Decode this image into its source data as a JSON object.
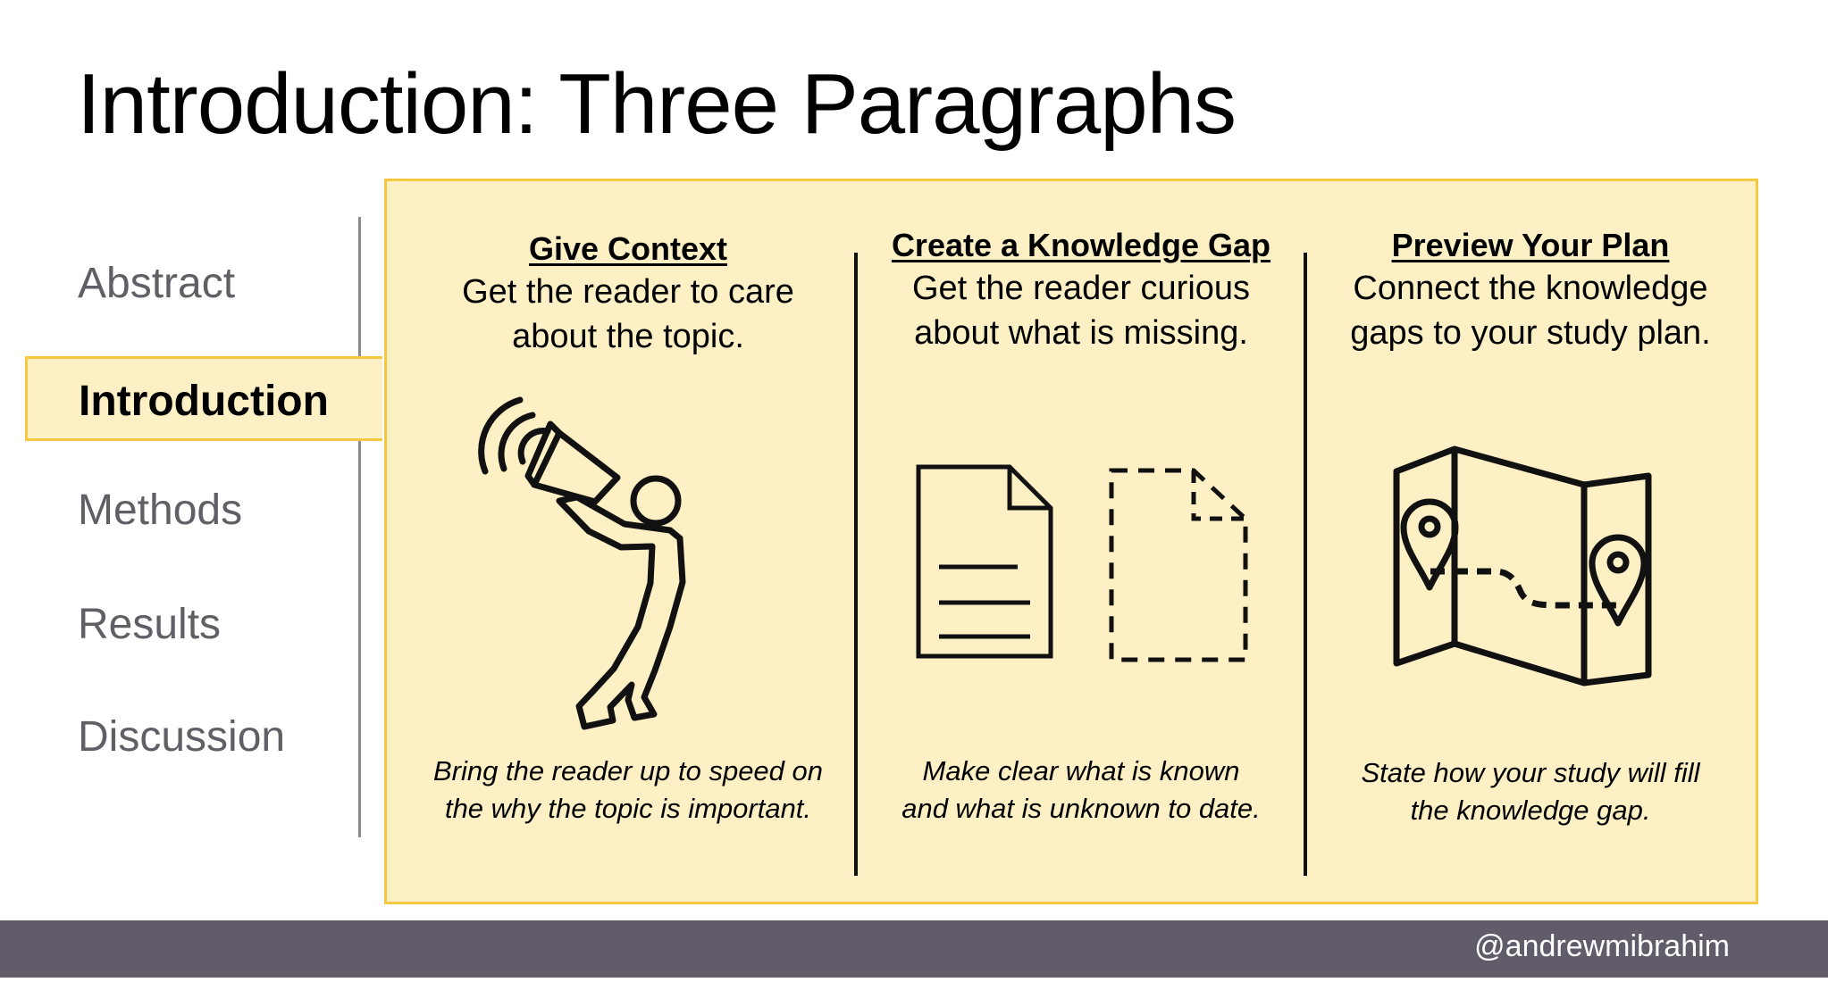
{
  "slide": {
    "title": "Introduction: Three Paragraphs"
  },
  "sidebar": {
    "items": [
      {
        "label": "Abstract",
        "active": false
      },
      {
        "label": "Introduction",
        "active": true
      },
      {
        "label": "Methods",
        "active": false
      },
      {
        "label": "Results",
        "active": false
      },
      {
        "label": "Discussion",
        "active": false
      }
    ]
  },
  "columns": [
    {
      "heading": "Give Context",
      "subtitle": [
        "Get the reader to care",
        "about the topic."
      ],
      "note": [
        "Bring the reader up to speed on",
        "the why the topic is important."
      ],
      "icon": "megaphone-person-icon"
    },
    {
      "heading": "Create a Knowledge Gap",
      "subtitle": [
        "Get the reader curious",
        "about what is missing."
      ],
      "note": [
        "Make clear what is known",
        "and what is unknown to date."
      ],
      "icon": "document-and-missing-document-icon"
    },
    {
      "heading": "Preview Your Plan",
      "subtitle": [
        "Connect the knowledge",
        "gaps to your study plan."
      ],
      "note": [
        "State how your study will fill",
        "the knowledge gap."
      ],
      "icon": "map-route-icon"
    }
  ],
  "footer": {
    "handle": "@andrewmibrahim"
  },
  "colors": {
    "panel_fill": "#fdf0c5",
    "panel_border": "#f5c842",
    "footer_bar": "#615b6a",
    "inactive_nav_text": "#5f5f66"
  }
}
